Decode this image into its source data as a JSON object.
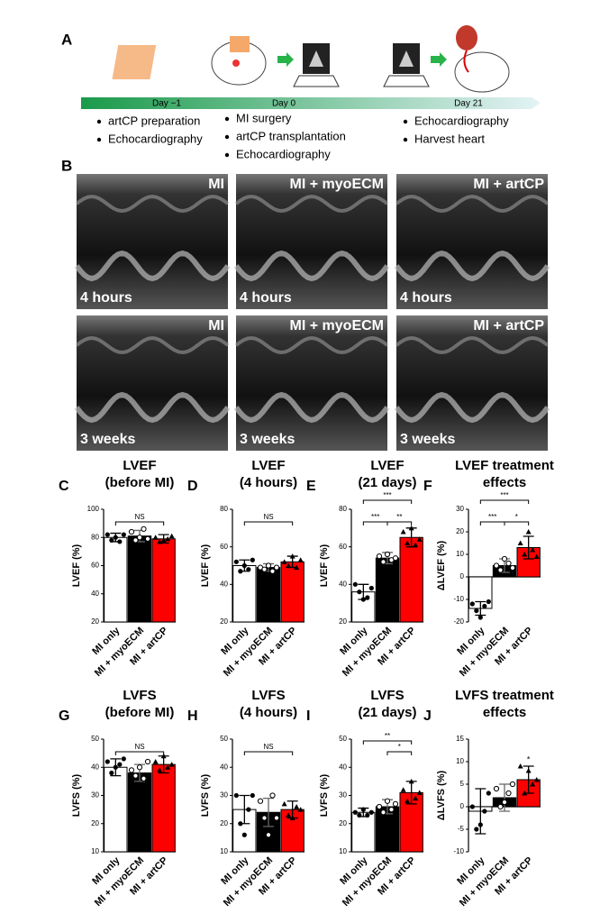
{
  "timeline": {
    "panel": "A",
    "days": [
      "Day −1",
      "Day 0",
      "Day 21"
    ],
    "steps": [
      [
        "artCP preparation",
        "Echocardiography"
      ],
      [
        "MI surgery",
        "artCP transplantation",
        "Echocardiography"
      ],
      [
        "Echocardiography",
        "Harvest heart"
      ]
    ]
  },
  "echo": {
    "panel": "B",
    "groups": [
      "MI",
      "MI + myoECM",
      "MI + artCP"
    ],
    "times": [
      "4 hours",
      "3 weeks"
    ]
  },
  "chart_data": [
    {
      "type": "bar",
      "panel": "C",
      "title": "LVEF",
      "subtitle": "(before MI)",
      "ylabel": "LVEF (%)",
      "categories": [
        "MI only",
        "MI + myoECM",
        "MI + artCP"
      ],
      "colors": [
        "#ffffff",
        "#000000",
        "#ff0000"
      ],
      "values": [
        80,
        81,
        79
      ],
      "errors": [
        3,
        4,
        3
      ],
      "points": [
        [
          82,
          78,
          80,
          77,
          82
        ],
        [
          84,
          78,
          80,
          86,
          79
        ],
        [
          80,
          77,
          78,
          79,
          81
        ]
      ],
      "ylim": [
        20,
        100
      ],
      "yticks": [
        20,
        40,
        60,
        80,
        100
      ],
      "brackets": [
        {
          "from": 0,
          "to": 2,
          "label": "NS"
        }
      ]
    },
    {
      "type": "bar",
      "panel": "D",
      "title": "LVEF",
      "subtitle": "(4 hours)",
      "ylabel": "LVEF (%)",
      "categories": [
        "MI only",
        "MI + myoECM",
        "MI + artCP"
      ],
      "colors": [
        "#ffffff",
        "#000000",
        "#ff0000"
      ],
      "values": [
        50,
        49,
        52
      ],
      "errors": [
        3,
        2,
        3
      ],
      "points": [
        [
          52,
          47,
          50,
          48,
          53
        ],
        [
          49,
          48,
          50,
          47,
          49
        ],
        [
          52,
          50,
          55,
          49,
          53
        ]
      ],
      "ylim": [
        20,
        80
      ],
      "yticks": [
        20,
        40,
        60,
        80
      ],
      "brackets": [
        {
          "from": 0,
          "to": 2,
          "label": "NS"
        }
      ]
    },
    {
      "type": "bar",
      "panel": "E",
      "title": "LVEF",
      "subtitle": "(21 days)",
      "ylabel": "LVEF (%)",
      "categories": [
        "MI only",
        "MI + myoECM",
        "MI + artCP"
      ],
      "colors": [
        "#ffffff",
        "#000000",
        "#ff0000"
      ],
      "values": [
        36,
        54,
        65
      ],
      "errors": [
        4,
        3,
        5
      ],
      "points": [
        [
          40,
          36,
          32,
          33,
          38
        ],
        [
          55,
          52,
          56,
          53,
          54
        ],
        [
          68,
          62,
          70,
          61,
          64
        ]
      ],
      "ylim": [
        20,
        80
      ],
      "yticks": [
        20,
        40,
        60,
        80
      ],
      "brackets": [
        {
          "from": 0,
          "to": 1,
          "label": "***"
        },
        {
          "from": 1,
          "to": 2,
          "label": "**"
        },
        {
          "from": 0,
          "to": 2,
          "label": "***"
        }
      ]
    },
    {
      "type": "bar",
      "panel": "F",
      "title": "LVEF treatment",
      "subtitle": "effects",
      "ylabel": "ΔLVEF (%)",
      "categories": [
        "MI only",
        "MI + myoECM",
        "MI + artCP"
      ],
      "colors": [
        "#ffffff",
        "#000000",
        "#ff0000"
      ],
      "values": [
        -14,
        5,
        13
      ],
      "errors": [
        3,
        3,
        5
      ],
      "points": [
        [
          -12,
          -15,
          -18,
          -13,
          -11
        ],
        [
          5,
          3,
          8,
          6,
          4
        ],
        [
          15,
          10,
          20,
          12,
          9
        ]
      ],
      "ylim": [
        -20,
        30
      ],
      "yticks": [
        -20,
        -10,
        0,
        10,
        20,
        30
      ],
      "brackets": [
        {
          "from": 0,
          "to": 1,
          "label": "***"
        },
        {
          "from": 1,
          "to": 2,
          "label": "*"
        },
        {
          "from": 0,
          "to": 2,
          "label": "***"
        }
      ]
    },
    {
      "type": "bar",
      "panel": "G",
      "title": "LVFS",
      "subtitle": "(before MI)",
      "ylabel": "LVFS (%)",
      "categories": [
        "MI only",
        "MI + myoECM",
        "MI + artCP"
      ],
      "colors": [
        "#ffffff",
        "#000000",
        "#ff0000"
      ],
      "values": [
        40,
        38,
        41
      ],
      "errors": [
        3,
        3,
        3
      ],
      "points": [
        [
          42,
          38,
          40,
          41,
          43
        ],
        [
          39,
          37,
          40,
          36,
          42
        ],
        [
          42,
          39,
          44,
          40,
          41
        ]
      ],
      "ylim": [
        10,
        50
      ],
      "yticks": [
        10,
        20,
        30,
        40,
        50
      ],
      "brackets": [
        {
          "from": 0,
          "to": 2,
          "label": "NS"
        }
      ]
    },
    {
      "type": "bar",
      "panel": "H",
      "title": "LVFS",
      "subtitle": "(4 hours)",
      "ylabel": "LVFS (%)",
      "categories": [
        "MI only",
        "MI + myoECM",
        "MI + artCP"
      ],
      "colors": [
        "#ffffff",
        "#000000",
        "#ff0000"
      ],
      "values": [
        25,
        24,
        25
      ],
      "errors": [
        5,
        5,
        3
      ],
      "points": [
        [
          30,
          20,
          16,
          25,
          30
        ],
        [
          28,
          22,
          16,
          30,
          22
        ],
        [
          27,
          23,
          22,
          26,
          25
        ]
      ],
      "ylim": [
        10,
        50
      ],
      "yticks": [
        10,
        20,
        30,
        40,
        50
      ],
      "brackets": [
        {
          "from": 0,
          "to": 2,
          "label": "NS"
        }
      ]
    },
    {
      "type": "bar",
      "panel": "I",
      "title": "LVFS",
      "subtitle": "(21 days)",
      "ylabel": "LVFS (%)",
      "categories": [
        "MI only",
        "MI + myoECM",
        "MI + artCP"
      ],
      "colors": [
        "#ffffff",
        "#000000",
        "#ff0000"
      ],
      "values": [
        24,
        26,
        31
      ],
      "errors": [
        1.5,
        2.5,
        4
      ],
      "points": [
        [
          24,
          23,
          25,
          23,
          24
        ],
        [
          26,
          24,
          28,
          25,
          27
        ],
        [
          32,
          28,
          35,
          29,
          31
        ]
      ],
      "ylim": [
        10,
        50
      ],
      "yticks": [
        10,
        20,
        30,
        40,
        50
      ],
      "brackets": [
        {
          "from": 1,
          "to": 2,
          "label": "*"
        },
        {
          "from": 0,
          "to": 2,
          "label": "**"
        }
      ]
    },
    {
      "type": "bar",
      "panel": "J",
      "title": "LVFS treatment",
      "subtitle": "effects",
      "ylabel": "ΔLVFS (%)",
      "categories": [
        "MI only",
        "MI + myoECM",
        "MI + artCP"
      ],
      "colors": [
        "#ffffff",
        "#000000",
        "#ff0000"
      ],
      "values": [
        -1,
        2,
        6
      ],
      "errors": [
        5,
        3,
        3
      ],
      "points": [
        [
          0,
          -5,
          -4,
          -1,
          3
        ],
        [
          4,
          0,
          1,
          3,
          5
        ],
        [
          9,
          3,
          8,
          5,
          6
        ]
      ],
      "ylim": [
        -10,
        15
      ],
      "yticks": [
        -10,
        -5,
        0,
        5,
        10,
        15
      ],
      "brackets": [],
      "stars": [
        {
          "index": 2,
          "label": "*"
        }
      ]
    }
  ]
}
